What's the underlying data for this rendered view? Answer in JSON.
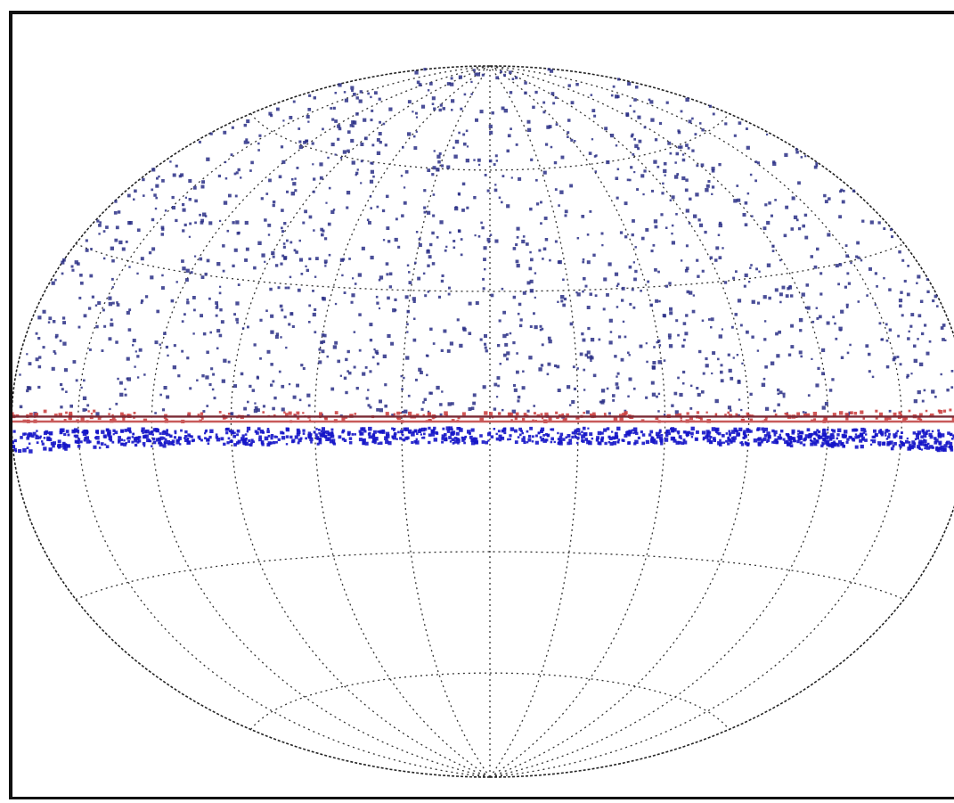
{
  "chart_data": {
    "type": "scatter",
    "projection": "hammer-aitoff",
    "coordinate_system": "galactic",
    "xlim": [
      -180,
      180
    ],
    "ylim": [
      -90,
      90
    ],
    "grid": true,
    "grid_longitudes": [
      -180,
      -150,
      -120,
      -90,
      -60,
      -30,
      0,
      30,
      60,
      90,
      120,
      150,
      180
    ],
    "grid_latitudes": [
      -60,
      -30,
      0,
      30,
      60
    ],
    "series": [
      {
        "marker_color": "#2a2f86",
        "sampling": "upper-hemisphere",
        "lat_range": [
          1,
          88
        ],
        "point_count": 1500
      },
      {
        "marker_color": "#1515c8",
        "sampling": "band",
        "lat_range": [
          -5,
          -1.5
        ],
        "point_count": 1100
      },
      {
        "marker_color": "#cc4444",
        "sampling": "band",
        "lat_range": [
          0,
          2
        ],
        "point_count": 260
      }
    ],
    "reference_lines": [
      {
        "lat": 0,
        "color": "#c85a5a"
      },
      {
        "lat": 0.8,
        "color": "#7a2a35"
      }
    ],
    "colors": {
      "grid": "#333333",
      "outline": "#222222",
      "background": "#ffffff"
    }
  }
}
